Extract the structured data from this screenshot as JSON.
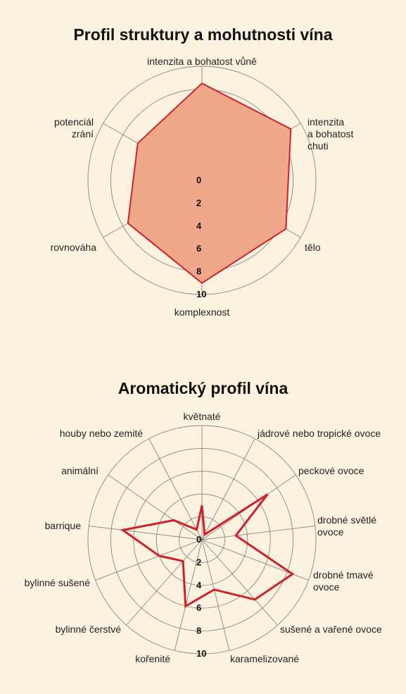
{
  "chart_data": [
    {
      "type": "radar",
      "title": "Profil struktury a mohutnosti vína",
      "axes": [
        [
          "intenzita a bohatost vůně"
        ],
        [
          "intenzita",
          "a bohatost",
          "chuti"
        ],
        [
          "tělo"
        ],
        [
          "komplexnost"
        ],
        [
          "rovnováha"
        ],
        [
          "potenciál",
          "zrání"
        ]
      ],
      "values": [
        8.5,
        9,
        8.5,
        9,
        7.5,
        6.5
      ],
      "r_ticks": [
        "0",
        "2",
        "4",
        "6",
        "8",
        "10"
      ],
      "rlim": [
        0,
        10
      ],
      "fill_color": "#f0a88a",
      "line_color": "#d0202a"
    },
    {
      "type": "radar",
      "title": "Aromatický profil vína",
      "axes": [
        [
          "květnaté"
        ],
        [
          "jádrové nebo tropické ovoce"
        ],
        [
          "peckové ovoce"
        ],
        [
          "drobné světlé",
          "ovoce"
        ],
        [
          "drobné tmavé",
          "ovoce"
        ],
        [
          "sušené a vařené ovoce"
        ],
        [
          "karamelizované"
        ],
        [
          "kořenité"
        ],
        [
          "bylinné čerstvé"
        ],
        [
          "bylinné sušené"
        ],
        [
          "barrique"
        ],
        [
          "animální"
        ],
        [
          "houby nebo zemité"
        ]
      ],
      "values": [
        3,
        0.5,
        7,
        3,
        8.5,
        7,
        4.5,
        6,
        2.5,
        4,
        7,
        3,
        1
      ],
      "r_ticks": [
        "0",
        "2",
        "4",
        "6",
        "8",
        "10"
      ],
      "rlim": [
        0,
        10
      ],
      "line_color": "#d0202a"
    }
  ]
}
